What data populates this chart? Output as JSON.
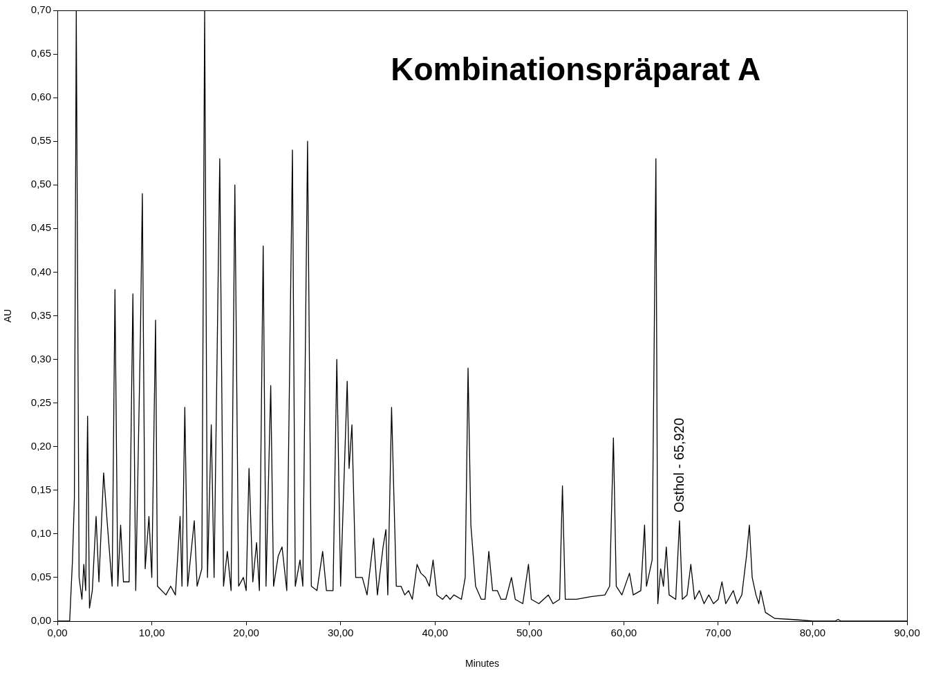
{
  "chart_data": {
    "type": "line",
    "title": "Kombinationspräparat A",
    "xlabel": "Minutes",
    "ylabel": "AU",
    "xlim": [
      0,
      90
    ],
    "ylim": [
      0,
      0.7
    ],
    "xticks": [
      {
        "value": 0,
        "label": "0,00"
      },
      {
        "value": 10,
        "label": "10,00"
      },
      {
        "value": 20,
        "label": "20,00"
      },
      {
        "value": 30,
        "label": "30,00"
      },
      {
        "value": 40,
        "label": "40,00"
      },
      {
        "value": 50,
        "label": "50,00"
      },
      {
        "value": 60,
        "label": "60,00"
      },
      {
        "value": 70,
        "label": "70,00"
      },
      {
        "value": 80,
        "label": "80,00"
      },
      {
        "value": 90,
        "label": "90,00"
      }
    ],
    "yticks": [
      {
        "value": 0,
        "label": "0,00"
      },
      {
        "value": 0.05,
        "label": "0,05"
      },
      {
        "value": 0.1,
        "label": "0,10"
      },
      {
        "value": 0.15,
        "label": "0,15"
      },
      {
        "value": 0.2,
        "label": "0,20"
      },
      {
        "value": 0.25,
        "label": "0,25"
      },
      {
        "value": 0.3,
        "label": "0,30"
      },
      {
        "value": 0.35,
        "label": "0,35"
      },
      {
        "value": 0.4,
        "label": "0,40"
      },
      {
        "value": 0.45,
        "label": "0,45"
      },
      {
        "value": 0.5,
        "label": "0,50"
      },
      {
        "value": 0.55,
        "label": "0,55"
      },
      {
        "value": 0.6,
        "label": "0,60"
      },
      {
        "value": 0.65,
        "label": "0,65"
      },
      {
        "value": 0.7,
        "label": "0,70"
      }
    ],
    "grid": false,
    "legend": false,
    "marker": "none",
    "line_style": "solid",
    "annotations": [
      {
        "text": "Osthol - 65,920",
        "x": 65.92,
        "y": 0.115
      }
    ],
    "series": [
      {
        "color": "#000000",
        "x": [
          0,
          1.3,
          1.6,
          1.8,
          2.0,
          2.3,
          2.6,
          2.8,
          3.0,
          3.2,
          3.4,
          3.7,
          4.1,
          4.4,
          4.9,
          5.3,
          5.8,
          6.1,
          6.4,
          6.7,
          7.0,
          7.6,
          8.0,
          8.3,
          8.8,
          9.0,
          9.3,
          9.7,
          10.0,
          10.4,
          10.6,
          11.5,
          12.0,
          12.5,
          13.0,
          13.2,
          13.5,
          13.8,
          14.5,
          14.8,
          15.3,
          15.6,
          15.9,
          16.3,
          16.6,
          17.2,
          17.6,
          18.0,
          18.4,
          18.8,
          19.2,
          19.7,
          20.0,
          20.3,
          20.7,
          21.1,
          21.4,
          21.8,
          22.1,
          22.6,
          22.9,
          23.4,
          23.8,
          24.3,
          24.9,
          25.2,
          25.7,
          26.0,
          26.5,
          26.9,
          27.5,
          28.1,
          28.5,
          29.2,
          29.6,
          30.0,
          30.7,
          30.9,
          31.2,
          31.6,
          32.3,
          32.8,
          33.5,
          33.9,
          34.5,
          34.8,
          35.0,
          35.4,
          35.9,
          36.4,
          36.8,
          37.2,
          37.6,
          38.1,
          38.5,
          39.0,
          39.4,
          39.8,
          40.2,
          40.8,
          41.2,
          41.6,
          42.0,
          42.8,
          43.2,
          43.5,
          43.8,
          44.3,
          44.9,
          45.3,
          45.7,
          46.1,
          46.6,
          47.0,
          47.5,
          48.1,
          48.5,
          49.3,
          49.9,
          50.2,
          51.0,
          51.5,
          52.0,
          52.5,
          53.2,
          53.5,
          53.8,
          55.0,
          56.5,
          58.0,
          58.5,
          58.9,
          59.2,
          59.8,
          60.6,
          61.0,
          61.8,
          62.2,
          62.4,
          63.0,
          63.4,
          63.6,
          63.9,
          64.2,
          64.5,
          64.8,
          65.5,
          65.9,
          66.2,
          66.7,
          67.1,
          67.5,
          68.0,
          68.5,
          69.0,
          69.5,
          70.0,
          70.4,
          70.8,
          71.6,
          72.0,
          72.5,
          73.0,
          73.3,
          73.6,
          74.0,
          74.3,
          74.5,
          75.0,
          76.0,
          77.7,
          79.0,
          80.0,
          82.4,
          82.7,
          83.0,
          90
        ],
        "values": [
          0,
          0,
          0.07,
          0.14,
          0.7,
          0.05,
          0.025,
          0.065,
          0.035,
          0.235,
          0.015,
          0.035,
          0.12,
          0.045,
          0.17,
          0.11,
          0.04,
          0.38,
          0.04,
          0.11,
          0.045,
          0.045,
          0.375,
          0.035,
          0.33,
          0.49,
          0.06,
          0.12,
          0.05,
          0.345,
          0.04,
          0.03,
          0.04,
          0.03,
          0.12,
          0.04,
          0.245,
          0.04,
          0.115,
          0.04,
          0.06,
          0.7,
          0.05,
          0.225,
          0.05,
          0.53,
          0.04,
          0.08,
          0.035,
          0.5,
          0.04,
          0.05,
          0.035,
          0.175,
          0.045,
          0.09,
          0.035,
          0.43,
          0.04,
          0.27,
          0.04,
          0.075,
          0.085,
          0.035,
          0.54,
          0.04,
          0.07,
          0.04,
          0.55,
          0.04,
          0.035,
          0.08,
          0.035,
          0.035,
          0.3,
          0.04,
          0.275,
          0.175,
          0.225,
          0.05,
          0.05,
          0.03,
          0.095,
          0.03,
          0.085,
          0.105,
          0.03,
          0.245,
          0.04,
          0.04,
          0.03,
          0.035,
          0.025,
          0.065,
          0.055,
          0.05,
          0.04,
          0.07,
          0.03,
          0.025,
          0.03,
          0.025,
          0.03,
          0.025,
          0.05,
          0.29,
          0.11,
          0.04,
          0.025,
          0.025,
          0.08,
          0.035,
          0.035,
          0.025,
          0.025,
          0.05,
          0.025,
          0.02,
          0.065,
          0.025,
          0.02,
          0.025,
          0.03,
          0.02,
          0.025,
          0.155,
          0.025,
          0.025,
          0.028,
          0.03,
          0.04,
          0.21,
          0.04,
          0.03,
          0.055,
          0.03,
          0.035,
          0.11,
          0.04,
          0.07,
          0.53,
          0.02,
          0.06,
          0.04,
          0.085,
          0.03,
          0.025,
          0.115,
          0.025,
          0.03,
          0.065,
          0.025,
          0.035,
          0.02,
          0.03,
          0.02,
          0.025,
          0.045,
          0.02,
          0.035,
          0.02,
          0.03,
          0.075,
          0.11,
          0.05,
          0.03,
          0.02,
          0.035,
          0.01,
          0.003,
          0.002,
          0.001,
          0,
          0,
          0.002,
          0,
          0
        ]
      }
    ]
  }
}
